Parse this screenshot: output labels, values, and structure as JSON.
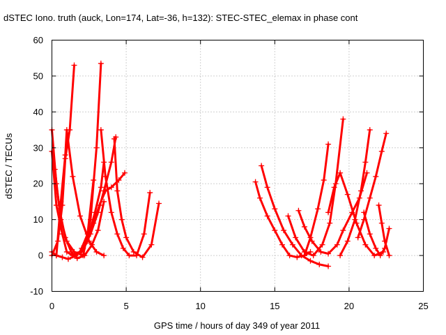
{
  "chart_data": {
    "type": "scatter",
    "title": "dSTEC Iono. truth (auck, Lon=174, Lat=-36, h=132): STEC-STEC_elemax in phase cont",
    "xlabel": "GPS time / hours of day 349 of year 2011",
    "ylabel": "dSTEC  / TECUs",
    "xlim": [
      0,
      25
    ],
    "ylim": [
      -10,
      60
    ],
    "xticks": [
      0,
      5,
      10,
      15,
      20,
      25
    ],
    "yticks": [
      -10,
      0,
      10,
      20,
      30,
      40,
      50,
      60
    ],
    "grid": true,
    "marker": "+",
    "color": "#ff0000",
    "series": [
      {
        "x": [
          0.0,
          0.3,
          0.6,
          1.0,
          1.5,
          2.1,
          2.6,
          3.0,
          3.3
        ],
        "y": [
          35,
          20,
          10,
          4,
          1,
          0,
          10,
          30,
          53.5
        ]
      },
      {
        "x": [
          0.0,
          0.3,
          0.7,
          1.0,
          1.4,
          1.9,
          2.4,
          2.8
        ],
        "y": [
          29,
          14,
          6,
          1,
          0,
          1,
          6,
          21
        ]
      },
      {
        "x": [
          0.0,
          0.4,
          0.7,
          0.9,
          1.2,
          1.5
        ],
        "y": [
          0,
          4,
          14,
          27,
          35,
          53
        ]
      },
      {
        "x": [
          0.0,
          0.3,
          0.7,
          1.1,
          1.6,
          2.1,
          2.6,
          3.1,
          3.5,
          4.0,
          4.3
        ],
        "y": [
          1,
          0,
          -0.5,
          -1,
          0,
          2,
          6,
          12,
          18,
          26,
          33
        ]
      },
      {
        "x": [
          0.2,
          0.5,
          0.9,
          1.3,
          1.7,
          2.2,
          2.7,
          3.1,
          3.5
        ],
        "y": [
          24,
          13,
          5,
          1,
          -0.8,
          0,
          3,
          7,
          15
        ]
      },
      {
        "x": [
          0.3,
          0.6,
          0.9,
          1.0,
          1.4,
          1.9,
          2.5,
          3.0,
          3.5
        ],
        "y": [
          0,
          15,
          28,
          35,
          22,
          11,
          4,
          1,
          0
        ]
      },
      {
        "x": [
          1.5,
          2.0,
          2.4,
          2.8,
          3.2,
          3.6,
          4.0,
          4.5,
          4.9
        ],
        "y": [
          0,
          1,
          4,
          9,
          14,
          18,
          19,
          21,
          23
        ]
      },
      {
        "x": [
          2.0,
          2.5,
          2.9,
          3.3,
          3.5
        ],
        "y": [
          2,
          6,
          12,
          19,
          26
        ]
      },
      {
        "x": [
          3.3,
          3.6,
          4.0,
          4.4,
          4.8,
          5.2,
          5.7,
          6.2,
          6.6
        ],
        "y": [
          35,
          22,
          12,
          6,
          2,
          0,
          0,
          6,
          17.5
        ]
      },
      {
        "x": [
          4.2,
          4.4,
          4.7,
          5.0,
          5.5,
          6.1,
          6.7,
          7.2
        ],
        "y": [
          32.5,
          18,
          10,
          5,
          1,
          -0.5,
          3,
          14.5
        ]
      },
      {
        "x": [
          13.7,
          14.0,
          14.5,
          15.0,
          15.5,
          16.0,
          16.5,
          17.0,
          17.4
        ],
        "y": [
          20.5,
          16,
          11,
          7,
          3,
          0,
          -0.5,
          0,
          1
        ]
      },
      {
        "x": [
          14.1,
          14.5,
          15.0,
          15.6,
          16.2,
          16.8,
          17.4,
          18.0,
          18.6
        ],
        "y": [
          25,
          19,
          13,
          7,
          3,
          0,
          -1.5,
          -2.5,
          -3
        ]
      },
      {
        "x": [
          15.9,
          16.4,
          17.0,
          17.6,
          18.2,
          18.7,
          19.1,
          19.6
        ],
        "y": [
          11,
          5,
          1,
          0,
          3,
          9,
          20,
          38
        ]
      },
      {
        "x": [
          16.6,
          17.0,
          17.5,
          18.1,
          18.6,
          19.2,
          19.6,
          20.2,
          20.7,
          21.2
        ],
        "y": [
          12.5,
          8,
          4,
          1,
          0.5,
          3,
          7,
          12,
          16,
          23
        ]
      },
      {
        "x": [
          17.0,
          17.4,
          17.9,
          18.3,
          18.6
        ],
        "y": [
          0,
          5,
          13,
          21,
          31
        ]
      },
      {
        "x": [
          18.6,
          19.0,
          19.4,
          19.9,
          20.5,
          21.1,
          21.7,
          22.3
        ],
        "y": [
          12,
          19,
          23,
          17,
          9,
          3,
          0,
          1
        ]
      },
      {
        "x": [
          19.4,
          19.9,
          20.4,
          20.8,
          21.1,
          21.4
        ],
        "y": [
          0,
          4,
          10,
          18,
          26,
          35
        ]
      },
      {
        "x": [
          20.6,
          21.0,
          21.4,
          21.8,
          22.2,
          22.5
        ],
        "y": [
          5,
          10,
          16,
          22,
          29,
          34
        ]
      },
      {
        "x": [
          21.0,
          21.4,
          21.8,
          22.1,
          22.4,
          22.7
        ],
        "y": [
          12,
          6,
          2,
          0,
          2,
          7.5
        ]
      },
      {
        "x": [
          22.0,
          22.2,
          22.4,
          22.7
        ],
        "y": [
          14,
          9,
          4,
          0
        ]
      }
    ]
  }
}
